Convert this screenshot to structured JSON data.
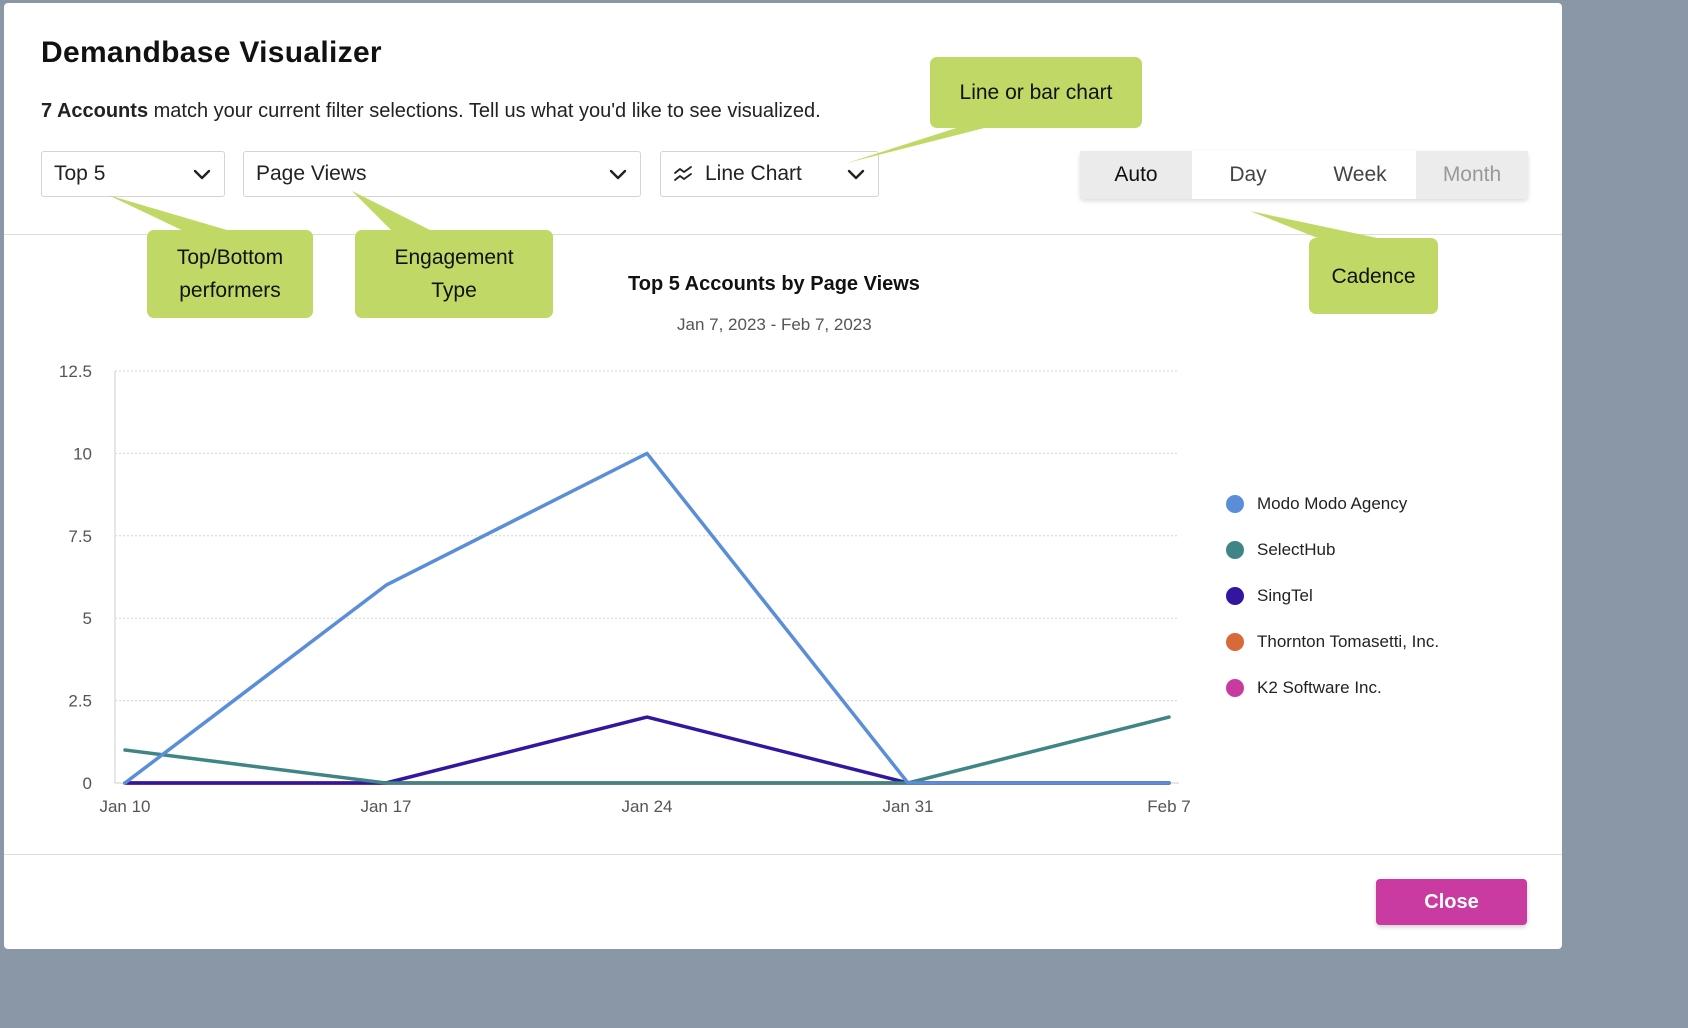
{
  "modal": {
    "title": "Demandbase Visualizer",
    "subtitle_count": "7 Accounts",
    "subtitle_rest": " match your current filter selections. Tell us what you'd like to see visualized.",
    "close_label": "Close"
  },
  "controls": {
    "performers_value": "Top 5",
    "engagement_value": "Page Views",
    "chart_type_value": "Line Chart",
    "cadence_options": [
      "Auto",
      "Day",
      "Week",
      "Month"
    ],
    "cadence_selected": "Auto"
  },
  "callouts": {
    "chart_type": "Line or bar chart",
    "performers_line1": "Top/Bottom",
    "performers_line2": "performers",
    "engagement_line1": "Engagement",
    "engagement_line2": "Type",
    "cadence": "Cadence"
  },
  "colors": {
    "accent": "#c93ba0",
    "callout": "#c0d966"
  },
  "chart_data": {
    "type": "line",
    "title": "Top 5 Accounts by Page Views",
    "subtitle": "Jan 7, 2023 - Feb 7, 2023",
    "x": [
      "Jan 10",
      "Jan 17",
      "Jan 24",
      "Jan 31",
      "Feb 7"
    ],
    "ylim": [
      0,
      12.5
    ],
    "yticks": [
      "0",
      "2.5",
      "5",
      "7.5",
      "10",
      "12.5"
    ],
    "grid": true,
    "legend_position": "right",
    "series": [
      {
        "name": "Modo Modo Agency",
        "color": "#5b8ed8",
        "values": [
          0,
          6,
          10,
          0,
          0
        ]
      },
      {
        "name": "SelectHub",
        "color": "#3f8585",
        "values": [
          1,
          0,
          0,
          0,
          2
        ]
      },
      {
        "name": "SingTel",
        "color": "#3216a0",
        "values": [
          0,
          0,
          2,
          0,
          0
        ]
      },
      {
        "name": "Thornton Tomasetti, Inc.",
        "color": "#d86a3a",
        "values": [
          0,
          0,
          0,
          0,
          0
        ]
      },
      {
        "name": "K2 Software Inc.",
        "color": "#c93ba0",
        "values": [
          0,
          0,
          0,
          0,
          0
        ]
      }
    ]
  }
}
